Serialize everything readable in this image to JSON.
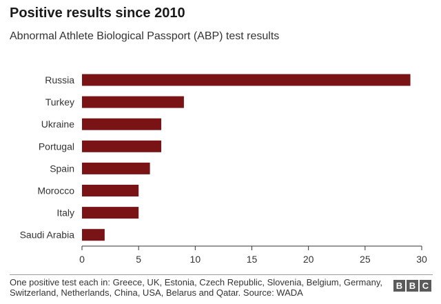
{
  "header": {
    "title": "Positive results since 2010",
    "subtitle": "Abnormal Athlete Biological Passport (ABP) test results"
  },
  "footer": {
    "note": "One positive test each in: Greece, UK, Estonia, Czech Republic, Slovenia, Belgium, Germany, Switzerland, Netherlands, China, USA, Belarus and Qatar. Source: WADA",
    "logo": [
      "B",
      "B",
      "C"
    ]
  },
  "colors": {
    "bar": "#7a1316",
    "axis": "#333333",
    "text": "#333333"
  },
  "chart_data": {
    "type": "bar",
    "orientation": "horizontal",
    "title": "Positive results since 2010",
    "subtitle": "Abnormal Athlete Biological Passport (ABP) test results",
    "categories": [
      "Russia",
      "Turkey",
      "Ukraine",
      "Portugal",
      "Spain",
      "Morocco",
      "Italy",
      "Saudi Arabia"
    ],
    "values": [
      29,
      9,
      7,
      7,
      6,
      5,
      5,
      2
    ],
    "xlim": [
      0,
      30
    ],
    "xticks": [
      0,
      5,
      10,
      15,
      20,
      25,
      30
    ],
    "xlabel": "",
    "ylabel": "",
    "grid": false,
    "legend": "none"
  }
}
